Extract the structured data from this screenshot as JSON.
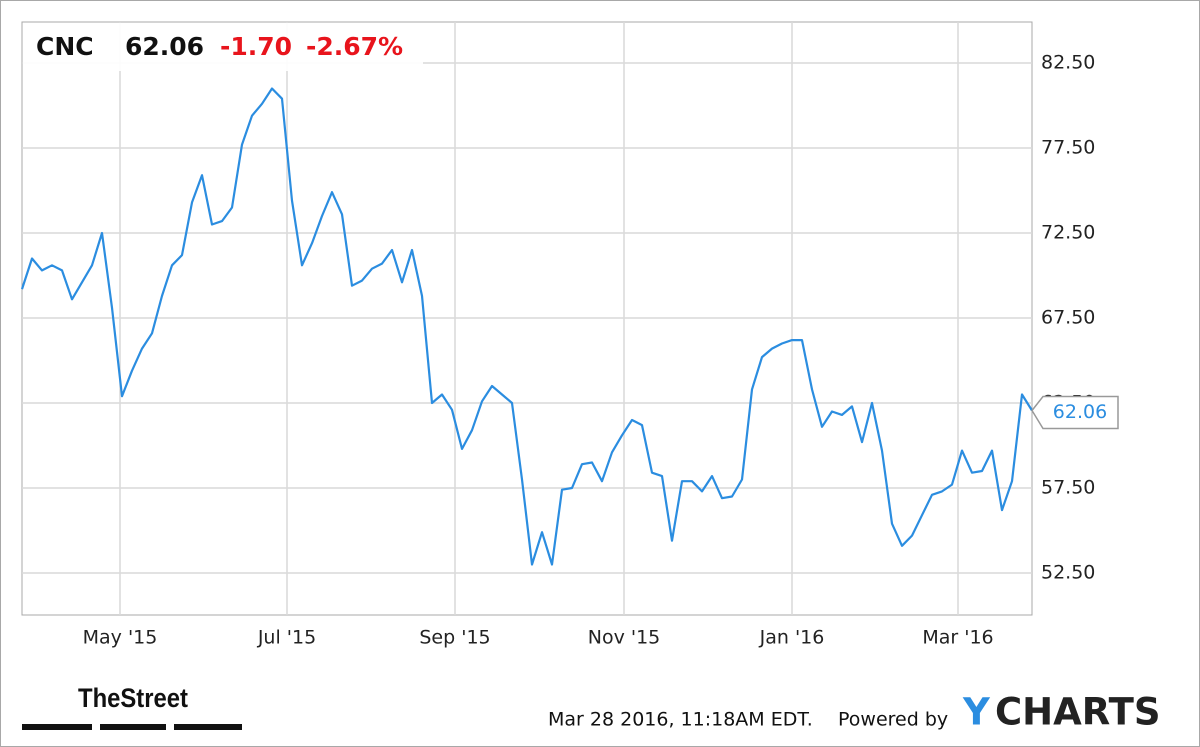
{
  "chart_data": {
    "type": "line",
    "header": {
      "ticker": "CNC",
      "price": "62.06",
      "change": "-1.70",
      "change_pct": "-2.67%"
    },
    "color": "#2b8de0",
    "change_color": "#e8141c",
    "grid": true,
    "values": [
      69.2,
      71.0,
      70.3,
      70.6,
      70.3,
      68.6,
      69.6,
      70.6,
      72.5,
      68.1,
      62.9,
      64.4,
      65.7,
      66.6,
      68.8,
      70.6,
      71.2,
      74.3,
      75.9,
      73.0,
      73.2,
      74.0,
      77.7,
      79.4,
      80.1,
      81.0,
      80.4,
      74.4,
      70.6,
      71.9,
      73.5,
      74.9,
      73.6,
      69.4,
      69.7,
      70.4,
      70.7,
      71.5,
      69.6,
      71.5,
      68.8,
      62.5,
      63.0,
      62.1,
      59.8,
      60.9,
      62.6,
      63.5,
      63.0,
      62.5,
      58.0,
      53.0,
      54.9,
      53.0,
      57.4,
      57.5,
      58.9,
      59.0,
      57.9,
      59.6,
      60.6,
      61.5,
      61.2,
      58.4,
      58.2,
      54.4,
      57.9,
      57.9,
      57.3,
      58.2,
      56.9,
      57.0,
      58.0,
      63.3,
      65.2,
      65.7,
      66.0,
      66.2,
      66.2,
      63.3,
      61.1,
      62.0,
      61.8,
      62.3,
      60.2,
      62.5,
      59.7,
      55.4,
      54.1,
      54.7,
      55.9,
      57.1,
      57.3,
      57.7,
      59.7,
      58.4,
      58.5,
      59.7,
      56.2,
      57.9,
      63.0,
      62.06
    ],
    "xlim": [
      0,
      101
    ],
    "xticks": [
      {
        "value": 9.8,
        "label": "May '15"
      },
      {
        "value": 26.5,
        "label": "Jul '15"
      },
      {
        "value": 43.3,
        "label": "Sep '15"
      },
      {
        "value": 60.2,
        "label": "Nov '15"
      },
      {
        "value": 77,
        "label": "Jan '16"
      },
      {
        "value": 93.6,
        "label": "Mar '16"
      }
    ],
    "ylim": [
      50.03,
      84.91
    ],
    "yticks": [
      {
        "value": 52.5,
        "label": "52.50"
      },
      {
        "value": 57.5,
        "label": "57.50"
      },
      {
        "value": 62.5,
        "label": "62.50"
      },
      {
        "value": 67.5,
        "label": "67.50"
      },
      {
        "value": 72.5,
        "label": "72.50"
      },
      {
        "value": 77.5,
        "label": "77.50"
      },
      {
        "value": 82.5,
        "label": "82.50"
      }
    ],
    "footer": {
      "source": "TheStreet",
      "timestamp": "Mar 28 2016, 11:18AM EDT.",
      "powered": "Powered by",
      "brand": [
        "Y",
        "CHARTS"
      ]
    }
  }
}
